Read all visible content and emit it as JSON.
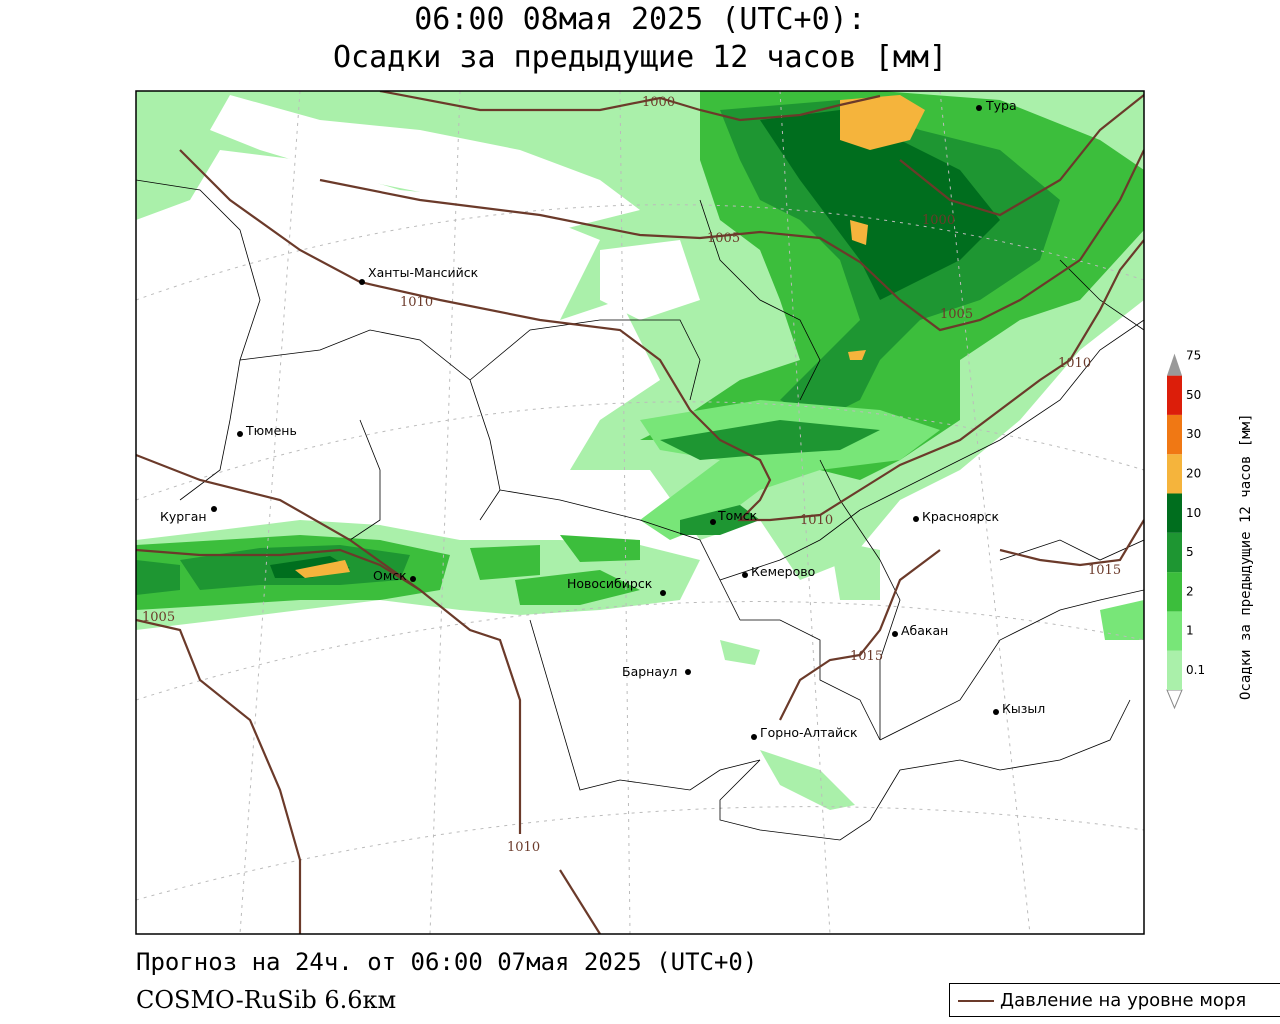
{
  "header": {
    "line1": "06:00 08мая 2025 (UTC+0):",
    "line2": "Осадки за предыдущие 12 часов [мм]"
  },
  "footer": {
    "forecast": "Прогноз на 24ч. от 06:00 07мая 2025 (UTC+0)",
    "model": "COSMO-RuSib 6.6км"
  },
  "legend": {
    "pressure_label": "Давление на уровне моря"
  },
  "colorbar": {
    "title": "Осадки за предыдущие 12 часов [мм]",
    "levels": [
      "0.1",
      "1",
      "2",
      "5",
      "10",
      "20",
      "30",
      "50",
      "75"
    ],
    "colors": [
      "#aaf0aa",
      "#78e678",
      "#3cbe3c",
      "#1e9632",
      "#006e1e",
      "#f5b43c",
      "#f07814",
      "#dc1e0a",
      "#a00000",
      "#999999"
    ]
  },
  "cities": [
    {
      "name": "Тура"
    },
    {
      "name": "Ханты-Мансийск"
    },
    {
      "name": "Тюмень"
    },
    {
      "name": "Курган"
    },
    {
      "name": "Томск"
    },
    {
      "name": "Красноярск"
    },
    {
      "name": "Омск"
    },
    {
      "name": "Новосибирск"
    },
    {
      "name": "Кемерово"
    },
    {
      "name": "Абакан"
    },
    {
      "name": "Барнаул"
    },
    {
      "name": "Кызыл"
    },
    {
      "name": "Горно-Алтайск"
    }
  ],
  "isobars": [
    "1000",
    "1000",
    "1005",
    "1005",
    "1010",
    "1010",
    "1010",
    "1015",
    "1015",
    "1005",
    "1010"
  ]
}
